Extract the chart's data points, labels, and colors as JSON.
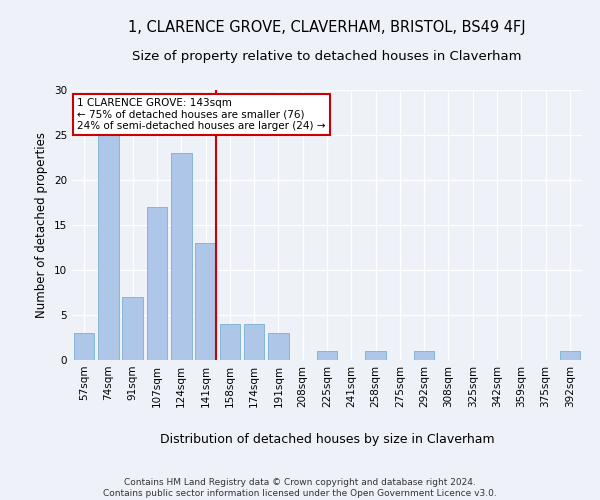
{
  "title": "1, CLARENCE GROVE, CLAVERHAM, BRISTOL, BS49 4FJ",
  "subtitle": "Size of property relative to detached houses in Claverham",
  "xlabel": "Distribution of detached houses by size in Claverham",
  "ylabel": "Number of detached properties",
  "categories": [
    "57sqm",
    "74sqm",
    "91sqm",
    "107sqm",
    "124sqm",
    "141sqm",
    "158sqm",
    "174sqm",
    "191sqm",
    "208sqm",
    "225sqm",
    "241sqm",
    "258sqm",
    "275sqm",
    "292sqm",
    "308sqm",
    "325sqm",
    "342sqm",
    "359sqm",
    "375sqm",
    "392sqm"
  ],
  "values": [
    3,
    25,
    7,
    17,
    23,
    13,
    4,
    4,
    3,
    0,
    1,
    0,
    1,
    0,
    1,
    0,
    0,
    0,
    0,
    0,
    1
  ],
  "bar_color": "#aec6e8",
  "bar_edgecolor": "#7aafd4",
  "vline_index": 5,
  "vline_color": "#cc0000",
  "ylim": [
    0,
    30
  ],
  "yticks": [
    0,
    5,
    10,
    15,
    20,
    25,
    30
  ],
  "annotation_line1": "1 CLARENCE GROVE: 143sqm",
  "annotation_line2": "← 75% of detached houses are smaller (76)",
  "annotation_line3": "24% of semi-detached houses are larger (24) →",
  "annotation_box_color": "#cc0000",
  "footer_line1": "Contains HM Land Registry data © Crown copyright and database right 2024.",
  "footer_line2": "Contains public sector information licensed under the Open Government Licence v3.0.",
  "background_color": "#eef2f8",
  "plot_background": "#eef2f8",
  "title_fontsize": 10.5,
  "subtitle_fontsize": 9.5,
  "axis_label_fontsize": 8.5,
  "tick_fontsize": 7.5,
  "annotation_fontsize": 7.5,
  "footer_fontsize": 6.5
}
